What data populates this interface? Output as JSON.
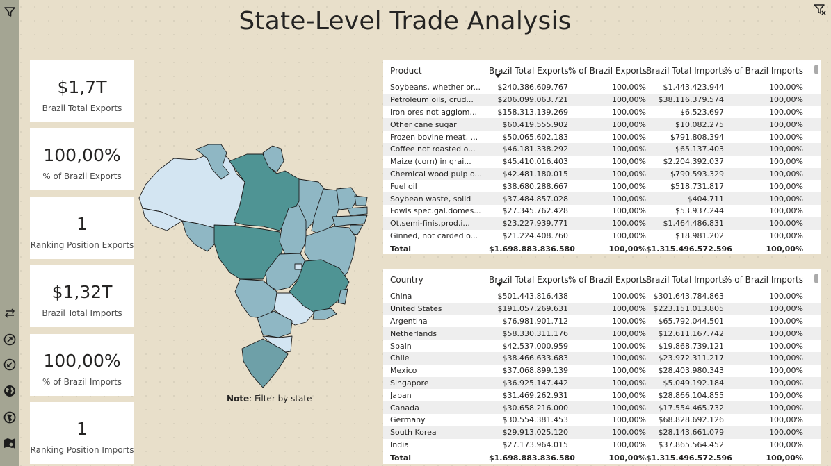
{
  "title": "State-Level Trade Analysis",
  "cards": [
    {
      "value": "$1,7T",
      "label": "Brazil Total Exports"
    },
    {
      "value": "100,00%",
      "label": "% of Brazil Exports"
    },
    {
      "value": "1",
      "label": "Ranking Position Exports"
    },
    {
      "value": "$1,32T",
      "label": "Brazil Total Imports"
    },
    {
      "value": "100,00%",
      "label": "% of Brazil Imports"
    },
    {
      "value": "1",
      "label": "Ranking Position Imports"
    }
  ],
  "map": {
    "note_bold": "Note",
    "note_text": ": Filter by state",
    "colors": {
      "dark": "#4f9494",
      "mid": "#8fb7c4",
      "light": "#d3e5f2",
      "outline": "#1c1c1c"
    }
  },
  "product_table": {
    "headers": [
      "Product",
      "Brazil Total Exports",
      "% of Brazil Exports",
      "Brazil Total Imports",
      "% of Brazil Imports"
    ],
    "rows": [
      [
        "Soybeans, whether or...",
        "$240.386.609.767",
        "100,00%",
        "$1.443.423.944",
        "100,00%"
      ],
      [
        "Petroleum oils, crud...",
        "$206.099.063.721",
        "100,00%",
        "$38.116.379.574",
        "100,00%"
      ],
      [
        "Iron ores not agglom...",
        "$158.313.139.269",
        "100,00%",
        "$6.523.697",
        "100,00%"
      ],
      [
        "Other cane sugar",
        "$60.419.555.902",
        "100,00%",
        "$10.082.275",
        "100,00%"
      ],
      [
        "Frozen bovine meat, ...",
        "$50.065.602.183",
        "100,00%",
        "$791.808.394",
        "100,00%"
      ],
      [
        "Coffee not roasted o...",
        "$46.181.338.292",
        "100,00%",
        "$65.137.403",
        "100,00%"
      ],
      [
        "Maize (corn) in grai...",
        "$45.410.016.403",
        "100,00%",
        "$2.204.392.037",
        "100,00%"
      ],
      [
        "Chemical wood pulp o...",
        "$42.481.180.015",
        "100,00%",
        "$790.593.329",
        "100,00%"
      ],
      [
        "Fuel oil",
        "$38.680.288.667",
        "100,00%",
        "$518.731.817",
        "100,00%"
      ],
      [
        "Soybean waste, solid",
        "$37.484.857.028",
        "100,00%",
        "$404.711",
        "100,00%"
      ],
      [
        "Fowls spec.gal.domes...",
        "$27.345.762.428",
        "100,00%",
        "$53.937.244",
        "100,00%"
      ],
      [
        "Ot.semi-finis.prod.i...",
        "$23.227.939.771",
        "100,00%",
        "$1.464.486.831",
        "100,00%"
      ],
      [
        "Ginned, not carded o...",
        "$21.224.408.760",
        "100,00%",
        "$18.981.202",
        "100,00%"
      ]
    ],
    "total": [
      "Total",
      "$1.698.883.836.580",
      "100,00%",
      "$1.315.496.572.596",
      "100,00%"
    ]
  },
  "country_table": {
    "headers": [
      "Country",
      "Brazil Total Exports",
      "% of Brazil Exports",
      "Brazil Total Imports",
      "% of Brazil Imports"
    ],
    "rows": [
      [
        "China",
        "$501.443.816.438",
        "100,00%",
        "$301.643.784.863",
        "100,00%"
      ],
      [
        "United States",
        "$191.057.269.631",
        "100,00%",
        "$223.151.013.805",
        "100,00%"
      ],
      [
        "Argentina",
        "$76.981.901.712",
        "100,00%",
        "$65.792.044.501",
        "100,00%"
      ],
      [
        "Netherlands",
        "$58.330.311.176",
        "100,00%",
        "$12.611.167.742",
        "100,00%"
      ],
      [
        "Spain",
        "$42.537.000.959",
        "100,00%",
        "$19.868.739.121",
        "100,00%"
      ],
      [
        "Chile",
        "$38.466.633.683",
        "100,00%",
        "$23.972.311.217",
        "100,00%"
      ],
      [
        "Mexico",
        "$37.068.899.139",
        "100,00%",
        "$28.403.980.343",
        "100,00%"
      ],
      [
        "Singapore",
        "$36.925.147.442",
        "100,00%",
        "$5.049.192.184",
        "100,00%"
      ],
      [
        "Japan",
        "$31.469.262.931",
        "100,00%",
        "$28.866.104.855",
        "100,00%"
      ],
      [
        "Canada",
        "$30.658.216.000",
        "100,00%",
        "$17.554.465.732",
        "100,00%"
      ],
      [
        "Germany",
        "$30.554.381.453",
        "100,00%",
        "$68.828.692.126",
        "100,00%"
      ],
      [
        "South Korea",
        "$29.913.025.120",
        "100,00%",
        "$28.143.661.079",
        "100,00%"
      ],
      [
        "India",
        "$27.173.964.015",
        "100,00%",
        "$37.865.564.452",
        "100,00%"
      ]
    ],
    "total": [
      "Total",
      "$1.698.883.836.580",
      "100,00%",
      "$1.315.496.572.596",
      "100,00%"
    ]
  },
  "icons": {
    "sidebar_top": "filter-icon",
    "top_right": "clear-filter-icon",
    "sidebar_tools": [
      "swap-arrows-icon",
      "expand-arrow-icon",
      "collapse-arrow-icon",
      "globe-icon",
      "world-pin-icon",
      "map-search-icon"
    ]
  }
}
